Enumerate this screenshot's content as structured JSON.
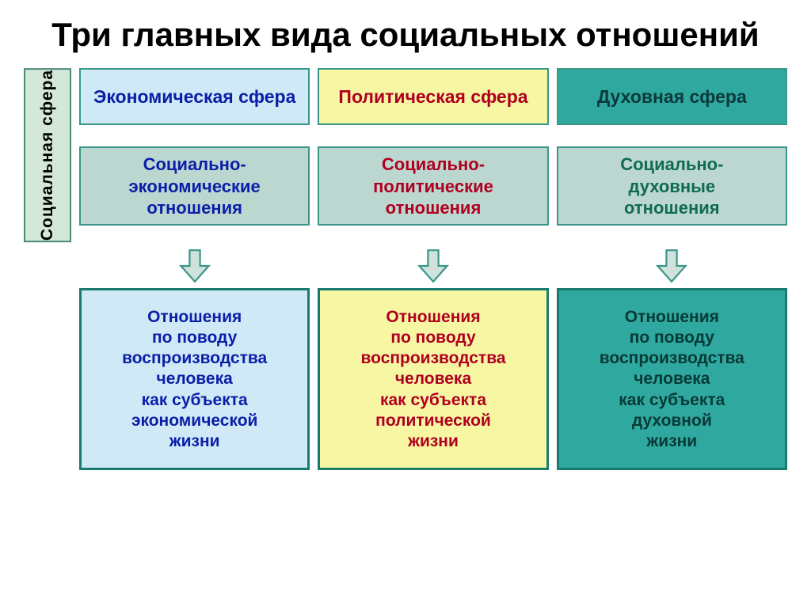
{
  "title": "Три главных вида социальных отношений",
  "sidebar": {
    "label": "Социальная сфера",
    "bg": "#d4e8d9",
    "text": "#000000"
  },
  "columns": [
    {
      "sphere": {
        "text": "Экономическая сфера",
        "bg": "#cfe9f6",
        "color": "#0a1ea8"
      },
      "relation": {
        "text": "Социально-\nэкономические\nотношения",
        "bg": "#bcd7d0",
        "color": "#0a1ea8"
      },
      "arrow_fill": "#cfe3dc",
      "desc": {
        "text": "Отношения\nпо поводу\nвоспроизводства\nчеловека\nкак субъекта\nэкономической\nжизни",
        "bg": "#cfe9f6",
        "color": "#0a1ea8"
      }
    },
    {
      "sphere": {
        "text": "Политическая сфера",
        "bg": "#f7f6a3",
        "color": "#b00020"
      },
      "relation": {
        "text": "Социально-\nполитические\nотношения",
        "bg": "#bcd7d0",
        "color": "#b00020"
      },
      "arrow_fill": "#cfe3dc",
      "desc": {
        "text": "Отношения\nпо поводу\nвоспроизводства\nчеловека\nкак субъекта\nполитической\nжизни",
        "bg": "#f7f6a3",
        "color": "#b00020"
      }
    },
    {
      "sphere": {
        "text": "Духовная сфера",
        "bg": "#2fa8a0",
        "color": "#0b3a3a"
      },
      "relation": {
        "text": "Социально-\nдуховные\nотношения",
        "bg": "#bcd7d0",
        "color": "#0f6b52"
      },
      "arrow_fill": "#cfe3dc",
      "desc": {
        "text": "Отношения\nпо поводу\nвоспроизводства\nчеловека\nкак субъекта\nдуховной\nжизни",
        "bg": "#2fa8a0",
        "color": "#073a36"
      }
    }
  ],
  "style": {
    "arrow_stroke": "#3a9688",
    "border_teal": "#3a9688",
    "border_dark": "#1a7a6e"
  }
}
